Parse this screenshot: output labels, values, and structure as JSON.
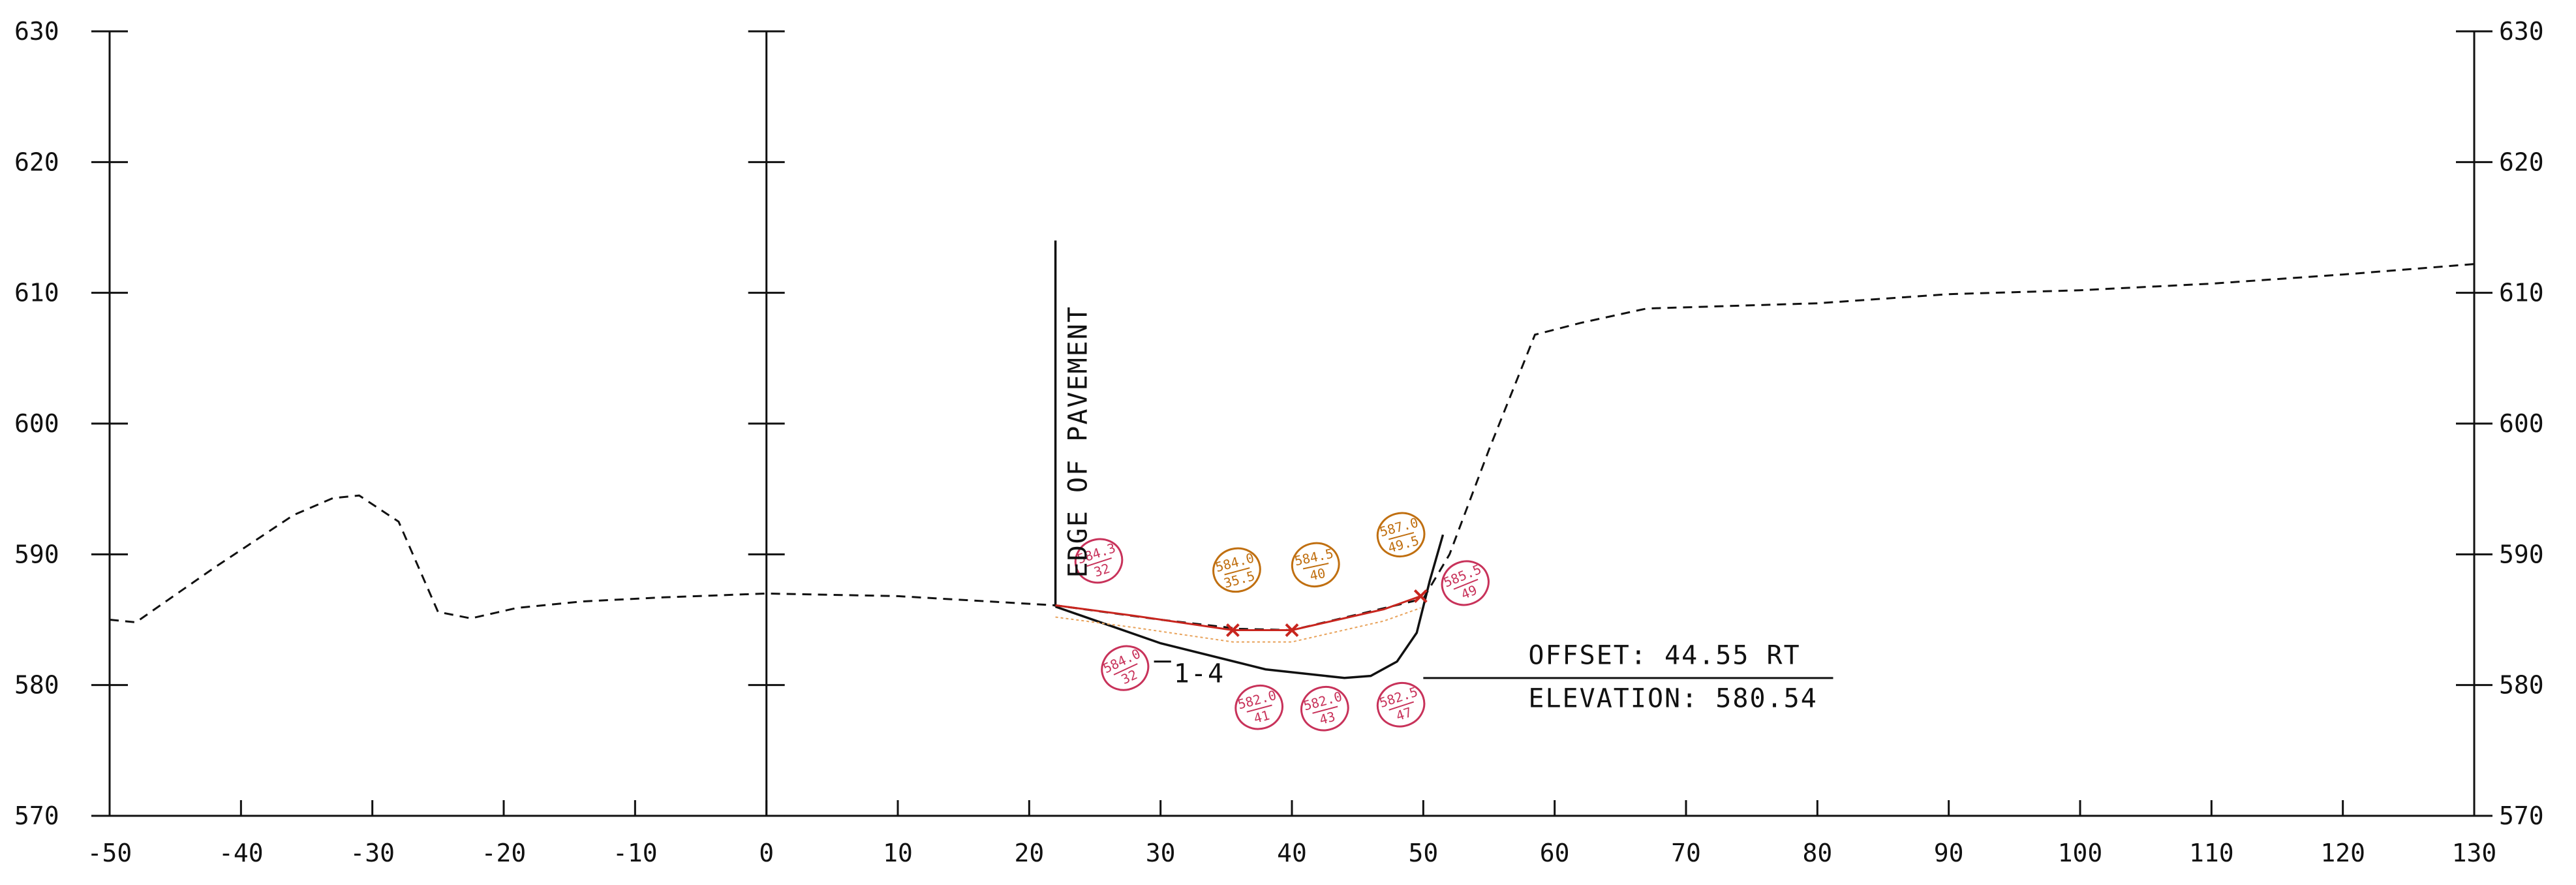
{
  "chart_data": {
    "type": "cross-section",
    "xlim": [
      -50,
      130
    ],
    "ylim": [
      570,
      630
    ],
    "x_ticks": [
      "-50",
      "-40",
      "-30",
      "-20",
      "-10",
      "0",
      "10",
      "20",
      "30",
      "40",
      "50",
      "60",
      "70",
      "80",
      "90",
      "100",
      "110",
      "120",
      "130"
    ],
    "y_ticks_left": [
      "630",
      "620",
      "610",
      "600",
      "590",
      "580",
      "570"
    ],
    "y_ticks_right": [
      "630",
      "620",
      "610",
      "600",
      "590",
      "580",
      "570"
    ],
    "grid": false,
    "existing_ground": [
      [
        -50,
        585
      ],
      [
        -48,
        584.8
      ],
      [
        -42,
        589
      ],
      [
        -36,
        593
      ],
      [
        -33,
        594.3
      ],
      [
        -31,
        594.5
      ],
      [
        -28,
        592.5
      ],
      [
        -25,
        585.6
      ],
      [
        -22.5,
        585.1
      ],
      [
        -19,
        585.9
      ],
      [
        -14,
        586.4
      ],
      [
        -8,
        586.7
      ],
      [
        0,
        587
      ],
      [
        10,
        586.8
      ],
      [
        22,
        586.1
      ],
      [
        30,
        585
      ],
      [
        36,
        584.3
      ],
      [
        40,
        584.2
      ],
      [
        45,
        585.4
      ],
      [
        50,
        586.6
      ],
      [
        52,
        590
      ],
      [
        55,
        598
      ],
      [
        58.5,
        606.8
      ],
      [
        62,
        607.7
      ],
      [
        67,
        608.8
      ],
      [
        80,
        609.2
      ],
      [
        90,
        609.9
      ],
      [
        100,
        610.2
      ],
      [
        110,
        610.7
      ],
      [
        120,
        611.4
      ],
      [
        130,
        612.2
      ]
    ],
    "proposed_section": [
      [
        22,
        586
      ],
      [
        30,
        583.2
      ],
      [
        38,
        581.2
      ],
      [
        44,
        580.54
      ],
      [
        46,
        580.7
      ],
      [
        48,
        581.8
      ],
      [
        49.5,
        584
      ],
      [
        50.5,
        588
      ],
      [
        51.5,
        591.5
      ]
    ],
    "survey_line": [
      [
        22,
        586.1
      ],
      [
        28,
        585.3
      ],
      [
        35.5,
        584.2
      ],
      [
        40,
        584.2
      ],
      [
        47,
        585.8
      ],
      [
        49.8,
        586.8
      ]
    ],
    "survey_points": [
      {
        "x": 35.5,
        "y": 584.2
      },
      {
        "x": 40,
        "y": 584.2
      },
      {
        "x": 49.8,
        "y": 586.8
      }
    ],
    "pavement_edge": {
      "x": 22,
      "y_top": 614,
      "y_bottom": 586
    },
    "offset_line": {
      "x_start": 50,
      "x_end": 81.2,
      "y": 580.54
    },
    "annotations": {
      "edge_of_pavement": "EDGE OF PAVEMENT",
      "slope": "1-4",
      "offset": "OFFSET: 44.55 RT",
      "elevation": "ELEVATION: 580.54"
    },
    "circled_notes": [
      {
        "color": "#c8325a",
        "top": "584.3",
        "bottom": "32",
        "x": 25.3,
        "y": 589.5,
        "rot": -18
      },
      {
        "color": "#c06f10",
        "top": "584.0",
        "bottom": "35.5",
        "x": 35.8,
        "y": 588.8,
        "rot": -15
      },
      {
        "color": "#c06f10",
        "top": "584.5",
        "bottom": "40",
        "x": 41.8,
        "y": 589.2,
        "rot": -12
      },
      {
        "color": "#c06f10",
        "top": "587.0",
        "bottom": "49.5",
        "x": 48.3,
        "y": 591.5,
        "rot": -15
      },
      {
        "color": "#c8325a",
        "top": "585.5",
        "bottom": "49",
        "x": 53.2,
        "y": 587.8,
        "rot": -22
      },
      {
        "color": "#c8325a",
        "top": "584.0",
        "bottom": "32",
        "x": 27.3,
        "y": 581.3,
        "rot": -25
      },
      {
        "color": "#c8325a",
        "top": "582.0",
        "bottom": "41",
        "x": 37.5,
        "y": 578.3,
        "rot": -15
      },
      {
        "color": "#c8325a",
        "top": "582.0",
        "bottom": "43",
        "x": 42.5,
        "y": 578.2,
        "rot": -15
      },
      {
        "color": "#c8325a",
        "top": "582.5",
        "bottom": "47",
        "x": 48.3,
        "y": 578.5,
        "rot": -18
      }
    ],
    "colors": {
      "ink": "#111111",
      "survey_red": "#c8251e",
      "survey_orange": "#e8a25a"
    }
  }
}
